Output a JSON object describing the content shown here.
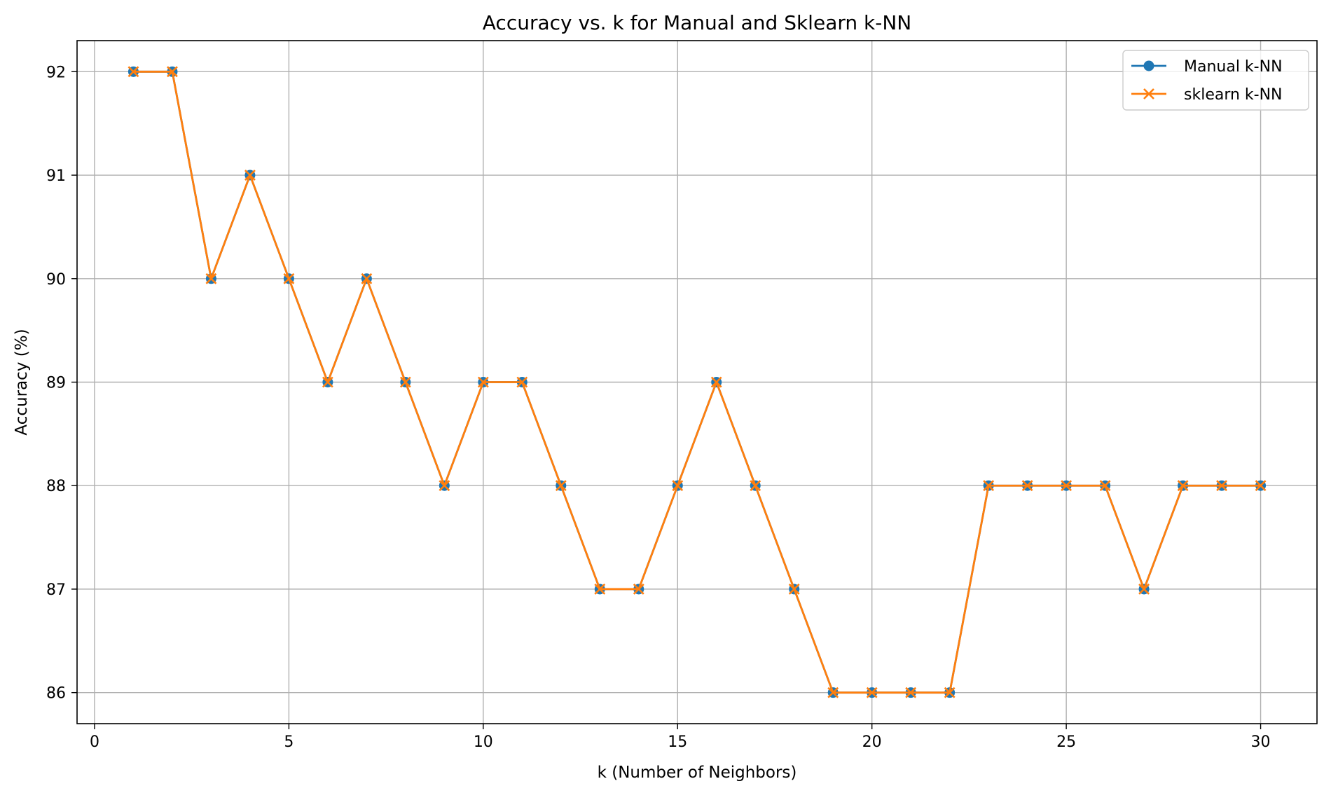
{
  "chart_data": {
    "type": "line",
    "title": "Accuracy vs. k for Manual and Sklearn k-NN",
    "xlabel": "k (Number of Neighbors)",
    "ylabel": "Accuracy (%)",
    "x": [
      1,
      2,
      3,
      4,
      5,
      6,
      7,
      8,
      9,
      10,
      11,
      12,
      13,
      14,
      15,
      16,
      17,
      18,
      19,
      20,
      21,
      22,
      23,
      24,
      25,
      26,
      27,
      28,
      29,
      30
    ],
    "xlim": [
      -0.45,
      31.45
    ],
    "ylim": [
      85.7,
      92.3
    ],
    "xticks": [
      0,
      5,
      10,
      15,
      20,
      25,
      30
    ],
    "yticks": [
      86,
      87,
      88,
      89,
      90,
      91,
      92
    ],
    "grid": true,
    "legend_position": "top-right",
    "series": [
      {
        "name": "Manual k-NN",
        "marker": "circle",
        "color": "#1f77b4",
        "values": [
          92,
          92,
          90,
          91,
          90,
          89,
          90,
          89,
          88,
          89,
          89,
          88,
          87,
          87,
          88,
          89,
          88,
          87,
          86,
          86,
          86,
          86,
          88,
          88,
          88,
          88,
          87,
          88,
          88,
          88
        ]
      },
      {
        "name": "sklearn k-NN",
        "marker": "x",
        "color": "#ff7f0e",
        "values": [
          92,
          92,
          90,
          91,
          90,
          89,
          90,
          89,
          88,
          89,
          89,
          88,
          87,
          87,
          88,
          89,
          88,
          87,
          86,
          86,
          86,
          86,
          88,
          88,
          88,
          88,
          87,
          88,
          88,
          88
        ]
      }
    ]
  }
}
